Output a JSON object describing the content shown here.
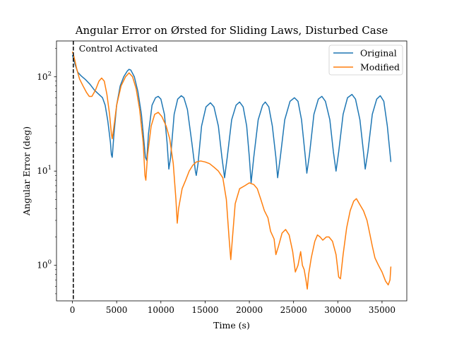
{
  "chart_data": {
    "type": "line",
    "title": "Angular Error on Ørsted for Sliding Laws, Disturbed Case",
    "xlabel": "Time (s)",
    "ylabel": "Angular Error (deg)",
    "xlim": [
      -1800,
      37800
    ],
    "ylim": [
      0.42,
      240
    ],
    "yscale": "log",
    "xticks": [
      0,
      5000,
      10000,
      15000,
      20000,
      25000,
      30000,
      35000
    ],
    "yticks": [
      1,
      10,
      100
    ],
    "ytick_labels": [
      "10^0",
      "10^1",
      "10^2"
    ],
    "grid": false,
    "legend": "top-right",
    "annotation": {
      "x": 100,
      "text": "Control Activated",
      "style": "dashed vertical line"
    },
    "series": [
      {
        "name": "Original",
        "color": "#1f77b4",
        "points": [
          [
            0,
            170
          ],
          [
            300,
            135
          ],
          [
            600,
            112
          ],
          [
            1000,
            102
          ],
          [
            1500,
            93
          ],
          [
            2000,
            83
          ],
          [
            2500,
            72
          ],
          [
            3000,
            65
          ],
          [
            3400,
            60
          ],
          [
            3700,
            50
          ],
          [
            4000,
            34
          ],
          [
            4300,
            20
          ],
          [
            4400,
            15
          ],
          [
            4500,
            14
          ],
          [
            4700,
            25
          ],
          [
            5000,
            50
          ],
          [
            5400,
            80
          ],
          [
            5800,
            100
          ],
          [
            6200,
            115
          ],
          [
            6400,
            120
          ],
          [
            6600,
            118
          ],
          [
            7000,
            100
          ],
          [
            7400,
            70
          ],
          [
            7800,
            40
          ],
          [
            8100,
            20
          ],
          [
            8250,
            14
          ],
          [
            8400,
            13
          ],
          [
            8600,
            25
          ],
          [
            9000,
            50
          ],
          [
            9400,
            60
          ],
          [
            9700,
            62
          ],
          [
            10000,
            58
          ],
          [
            10400,
            40
          ],
          [
            10700,
            20
          ],
          [
            10900,
            10.5
          ],
          [
            11100,
            14
          ],
          [
            11500,
            40
          ],
          [
            11900,
            58
          ],
          [
            12300,
            63
          ],
          [
            12600,
            60
          ],
          [
            13000,
            45
          ],
          [
            13500,
            20
          ],
          [
            13900,
            10
          ],
          [
            14000,
            9
          ],
          [
            14200,
            12
          ],
          [
            14600,
            30
          ],
          [
            15100,
            48
          ],
          [
            15600,
            53
          ],
          [
            16000,
            48
          ],
          [
            16500,
            30
          ],
          [
            16900,
            14
          ],
          [
            17200,
            8.5
          ],
          [
            17500,
            14
          ],
          [
            18000,
            35
          ],
          [
            18500,
            50
          ],
          [
            18900,
            54
          ],
          [
            19300,
            48
          ],
          [
            19700,
            30
          ],
          [
            20000,
            14
          ],
          [
            20200,
            7.5
          ],
          [
            20500,
            14
          ],
          [
            21000,
            35
          ],
          [
            21500,
            50
          ],
          [
            21800,
            54
          ],
          [
            22200,
            48
          ],
          [
            22600,
            30
          ],
          [
            23000,
            14
          ],
          [
            23200,
            8.5
          ],
          [
            23500,
            14
          ],
          [
            24000,
            35
          ],
          [
            24600,
            55
          ],
          [
            25100,
            60
          ],
          [
            25500,
            55
          ],
          [
            25900,
            35
          ],
          [
            26300,
            15
          ],
          [
            26500,
            9.5
          ],
          [
            26800,
            15
          ],
          [
            27300,
            40
          ],
          [
            27800,
            58
          ],
          [
            28200,
            62
          ],
          [
            28600,
            55
          ],
          [
            29100,
            35
          ],
          [
            29500,
            16
          ],
          [
            29800,
            10
          ],
          [
            30100,
            16
          ],
          [
            30600,
            40
          ],
          [
            31100,
            60
          ],
          [
            31600,
            65
          ],
          [
            32000,
            58
          ],
          [
            32500,
            35
          ],
          [
            32900,
            16
          ],
          [
            33100,
            10.5
          ],
          [
            33400,
            16
          ],
          [
            33900,
            40
          ],
          [
            34400,
            58
          ],
          [
            34800,
            63
          ],
          [
            35200,
            55
          ],
          [
            35600,
            30
          ],
          [
            36000,
            12.5
          ]
        ]
      },
      {
        "name": "Modified",
        "color": "#ff7f0e",
        "points": [
          [
            0,
            185
          ],
          [
            200,
            160
          ],
          [
            500,
            120
          ],
          [
            800,
            95
          ],
          [
            1200,
            80
          ],
          [
            1600,
            68
          ],
          [
            1900,
            62
          ],
          [
            2200,
            62
          ],
          [
            2600,
            72
          ],
          [
            3000,
            90
          ],
          [
            3300,
            97
          ],
          [
            3600,
            90
          ],
          [
            3900,
            65
          ],
          [
            4200,
            40
          ],
          [
            4400,
            25
          ],
          [
            4500,
            22
          ],
          [
            4700,
            30
          ],
          [
            5000,
            50
          ],
          [
            5500,
            80
          ],
          [
            6000,
            100
          ],
          [
            6400,
            110
          ],
          [
            6800,
            100
          ],
          [
            7200,
            75
          ],
          [
            7600,
            45
          ],
          [
            8000,
            20
          ],
          [
            8200,
            9
          ],
          [
            8300,
            8
          ],
          [
            8500,
            15
          ],
          [
            8900,
            30
          ],
          [
            9300,
            40
          ],
          [
            9700,
            42
          ],
          [
            10100,
            38
          ],
          [
            10600,
            30
          ],
          [
            11000,
            22
          ],
          [
            11400,
            12
          ],
          [
            11700,
            5
          ],
          [
            11850,
            2.8
          ],
          [
            12000,
            4
          ],
          [
            12400,
            6.5
          ],
          [
            12800,
            8
          ],
          [
            13200,
            10
          ],
          [
            13600,
            11.5
          ],
          [
            14000,
            12.5
          ],
          [
            14500,
            12.8
          ],
          [
            15000,
            12.5
          ],
          [
            15500,
            12
          ],
          [
            16000,
            11
          ],
          [
            16500,
            10
          ],
          [
            17000,
            8.5
          ],
          [
            17400,
            5
          ],
          [
            17700,
            2
          ],
          [
            17900,
            1.15
          ],
          [
            18100,
            2
          ],
          [
            18400,
            4.5
          ],
          [
            18900,
            6.5
          ],
          [
            19500,
            7
          ],
          [
            20000,
            7.5
          ],
          [
            20500,
            7.2
          ],
          [
            20900,
            6.5
          ],
          [
            21300,
            5
          ],
          [
            21700,
            3.8
          ],
          [
            22100,
            3.2
          ],
          [
            22400,
            2.3
          ],
          [
            22800,
            1.9
          ],
          [
            23000,
            1.3
          ],
          [
            23300,
            1.6
          ],
          [
            23700,
            2.2
          ],
          [
            24100,
            2.4
          ],
          [
            24500,
            2.1
          ],
          [
            24900,
            1.4
          ],
          [
            25200,
            0.85
          ],
          [
            25500,
            1
          ],
          [
            25800,
            1.4
          ],
          [
            26000,
            1
          ],
          [
            26200,
            0.9
          ],
          [
            26400,
            0.7
          ],
          [
            26550,
            0.56
          ],
          [
            26700,
            0.8
          ],
          [
            27000,
            1.2
          ],
          [
            27400,
            1.8
          ],
          [
            27700,
            2.1
          ],
          [
            28000,
            2
          ],
          [
            28300,
            1.85
          ],
          [
            28700,
            2
          ],
          [
            29000,
            2
          ],
          [
            29400,
            1.8
          ],
          [
            29800,
            1.3
          ],
          [
            30100,
            0.75
          ],
          [
            30300,
            0.72
          ],
          [
            30600,
            1.3
          ],
          [
            31000,
            2.5
          ],
          [
            31400,
            3.8
          ],
          [
            31800,
            4.8
          ],
          [
            32100,
            5.1
          ],
          [
            32500,
            4.4
          ],
          [
            32900,
            3.8
          ],
          [
            33300,
            3
          ],
          [
            33600,
            2.2
          ],
          [
            33900,
            1.6
          ],
          [
            34200,
            1.2
          ],
          [
            34600,
            1
          ],
          [
            35000,
            0.85
          ],
          [
            35400,
            0.68
          ],
          [
            35700,
            0.62
          ],
          [
            35900,
            0.7
          ],
          [
            36000,
            0.97
          ]
        ]
      }
    ]
  }
}
